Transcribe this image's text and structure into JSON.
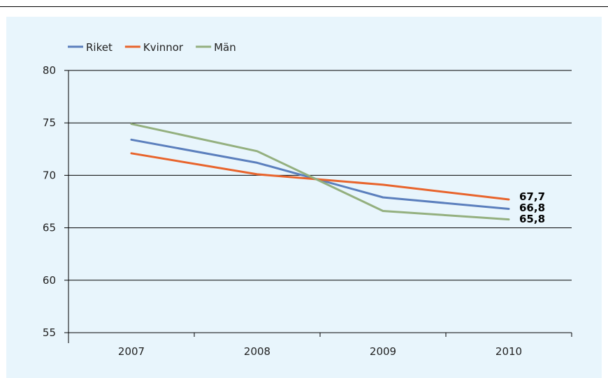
{
  "chart_data": {
    "type": "line",
    "title": "",
    "xlabel": "",
    "ylabel": "",
    "categories": [
      "2007",
      "2008",
      "2009",
      "2010"
    ],
    "ylim": [
      55,
      80
    ],
    "yticks": [
      55,
      60,
      65,
      70,
      75,
      80
    ],
    "grid": true,
    "legend_position": "top-left",
    "series": [
      {
        "name": "Riket",
        "color": "#5b7fbd",
        "values": [
          73.4,
          71.2,
          67.9,
          66.8
        ],
        "end_label": "66,8"
      },
      {
        "name": "Kvinnor",
        "color": "#e8642c",
        "values": [
          72.1,
          70.1,
          69.1,
          67.7
        ],
        "end_label": "67,7"
      },
      {
        "name": "Män",
        "color": "#94b07f",
        "values": [
          74.9,
          72.3,
          66.6,
          65.8
        ],
        "end_label": "65,8"
      }
    ]
  }
}
